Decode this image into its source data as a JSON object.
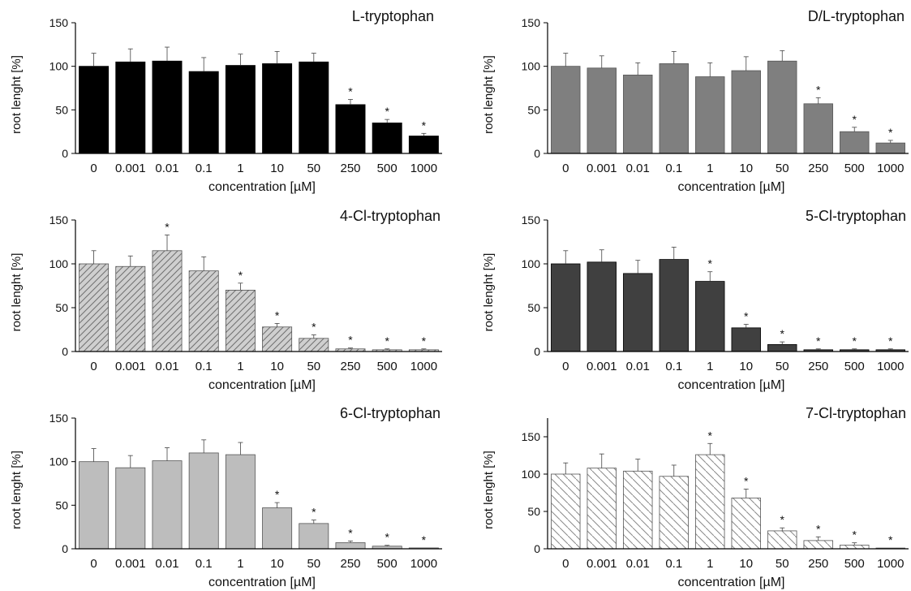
{
  "chart_data": [
    {
      "type": "bar",
      "title": "L-tryptophan",
      "xlabel": "concentration [µM]",
      "ylabel": "root lenght [%]",
      "categories": [
        "0",
        "0.001",
        "0.01",
        "0.1",
        "1",
        "10",
        "50",
        "250",
        "500",
        "1000"
      ],
      "values": [
        100,
        105,
        106,
        94,
        101,
        103,
        105,
        56,
        35,
        20
      ],
      "errors": [
        15,
        15,
        16,
        16,
        13,
        14,
        10,
        6,
        4,
        3
      ],
      "significant": [
        false,
        false,
        false,
        false,
        false,
        false,
        false,
        true,
        true,
        true
      ],
      "significance_marker": "*",
      "ylim": [
        0,
        150
      ],
      "yticks": [
        0,
        50,
        100,
        150
      ],
      "fill": "#000000",
      "pattern": "solid"
    },
    {
      "type": "bar",
      "title": "D/L-tryptophan",
      "xlabel": "concentration [µM]",
      "ylabel": "root lenght [%]",
      "categories": [
        "0",
        "0.001",
        "0.01",
        "0.1",
        "1",
        "10",
        "50",
        "250",
        "500",
        "1000"
      ],
      "values": [
        100,
        98,
        90,
        103,
        88,
        95,
        106,
        57,
        25,
        12
      ],
      "errors": [
        15,
        14,
        14,
        14,
        16,
        16,
        12,
        7,
        5,
        3
      ],
      "significant": [
        false,
        false,
        false,
        false,
        false,
        false,
        false,
        true,
        true,
        true
      ],
      "significance_marker": "*",
      "ylim": [
        0,
        150
      ],
      "yticks": [
        0,
        50,
        100,
        150
      ],
      "fill": "#7f7f7f",
      "pattern": "solid"
    },
    {
      "type": "bar",
      "title": "4-Cl-tryptophan",
      "xlabel": "concentration [µM]",
      "ylabel": "root lenght [%]",
      "categories": [
        "0",
        "0.001",
        "0.01",
        "0.1",
        "1",
        "10",
        "50",
        "250",
        "500",
        "1000"
      ],
      "values": [
        100,
        97,
        115,
        92,
        70,
        28,
        15,
        3,
        2,
        2
      ],
      "errors": [
        15,
        12,
        18,
        16,
        8,
        4,
        4,
        1,
        1,
        1
      ],
      "significant": [
        false,
        false,
        true,
        false,
        true,
        true,
        true,
        true,
        true,
        true
      ],
      "significance_marker": "*",
      "ylim": [
        0,
        150
      ],
      "yticks": [
        0,
        50,
        100,
        150
      ],
      "fill": "#cfcfcf",
      "pattern": "hatch-forward"
    },
    {
      "type": "bar",
      "title": "5-Cl-tryptophan",
      "xlabel": "concentration [µM]",
      "ylabel": "root lenght [%]",
      "categories": [
        "0",
        "0.001",
        "0.01",
        "0.1",
        "1",
        "10",
        "50",
        "250",
        "500",
        "1000"
      ],
      "values": [
        100,
        102,
        89,
        105,
        80,
        27,
        8,
        2,
        2,
        2
      ],
      "errors": [
        15,
        14,
        15,
        14,
        11,
        4,
        3,
        1,
        1,
        1
      ],
      "significant": [
        false,
        false,
        false,
        false,
        true,
        true,
        true,
        true,
        true,
        true
      ],
      "significance_marker": "*",
      "ylim": [
        0,
        150
      ],
      "yticks": [
        0,
        50,
        100,
        150
      ],
      "fill": "#404040",
      "pattern": "solid"
    },
    {
      "type": "bar",
      "title": "6-Cl-tryptophan",
      "xlabel": "concentration [µM]",
      "ylabel": "root lenght [%]",
      "categories": [
        "0",
        "0.001",
        "0.01",
        "0.1",
        "1",
        "10",
        "50",
        "250",
        "500",
        "1000"
      ],
      "values": [
        100,
        93,
        101,
        110,
        108,
        47,
        29,
        7,
        3,
        1
      ],
      "errors": [
        15,
        14,
        15,
        15,
        14,
        6,
        4,
        2,
        1,
        0
      ],
      "significant": [
        false,
        false,
        false,
        false,
        false,
        true,
        true,
        true,
        true,
        true
      ],
      "significance_marker": "*",
      "ylim": [
        0,
        150
      ],
      "yticks": [
        0,
        50,
        100,
        150
      ],
      "fill": "#bdbdbd",
      "pattern": "solid"
    },
    {
      "type": "bar",
      "title": "7-Cl-tryptophan",
      "xlabel": "concentration [µM]",
      "ylabel": "root lenght [%]",
      "categories": [
        "0",
        "0.001",
        "0.01",
        "0.1",
        "1",
        "10",
        "50",
        "250",
        "500",
        "1000"
      ],
      "values": [
        100,
        108,
        104,
        97,
        126,
        68,
        24,
        11,
        5,
        1
      ],
      "errors": [
        15,
        19,
        16,
        15,
        15,
        12,
        4,
        5,
        3,
        0
      ],
      "significant": [
        false,
        false,
        false,
        false,
        true,
        true,
        true,
        true,
        true,
        true
      ],
      "significance_marker": "*",
      "ylim": [
        0,
        175
      ],
      "yticks": [
        0,
        50,
        100,
        150
      ],
      "fill": "#ffffff",
      "pattern": "hatch-backward"
    }
  ]
}
